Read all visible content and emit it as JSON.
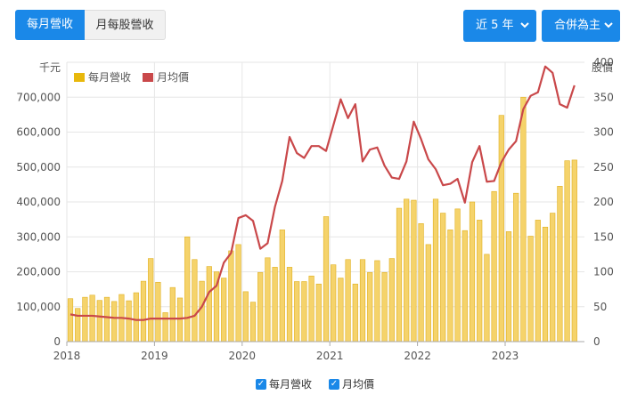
{
  "tabs": {
    "revenue": "每月營收",
    "ratio": "月每股營收"
  },
  "dropdowns": {
    "period": "近 5 年",
    "consolidation": "合併為主"
  },
  "chart_data": {
    "type": "bar+line",
    "y_left_unit": "千元",
    "y_right_unit": "股價",
    "ylim_left": [
      0,
      800000
    ],
    "ylim_right": [
      0,
      400
    ],
    "left_ticks": [
      "0",
      "100,000",
      "200,000",
      "300,000",
      "400,000",
      "500,000",
      "600,000",
      "700,000"
    ],
    "right_ticks": [
      "0",
      "50",
      "100",
      "150",
      "200",
      "250",
      "300",
      "350",
      "400"
    ],
    "x_ticks": [
      "2018",
      "2019",
      "2020",
      "2021",
      "2022",
      "2023"
    ],
    "x_start": "2018-01",
    "grid": true,
    "legend_position": "top-left",
    "colors": {
      "bar": "#f5d36b",
      "bar_border": "#e0b020",
      "line": "#c9484a",
      "grid": "#e6e6e6",
      "accent": "#1a88e8"
    },
    "series": [
      {
        "name": "每月營收",
        "kind": "bar",
        "values": [
          123000,
          95000,
          127000,
          133000,
          118000,
          127000,
          115000,
          135000,
          117000,
          140000,
          173000,
          238000,
          170000,
          83000,
          155000,
          125000,
          300000,
          235000,
          173000,
          215000,
          200000,
          182000,
          260000,
          278000,
          143000,
          113000,
          198000,
          240000,
          213000,
          320000,
          213000,
          172000,
          172000,
          188000,
          165000,
          358000,
          220000,
          182000,
          235000,
          165000,
          235000,
          198000,
          232000,
          198000,
          238000,
          382000,
          408000,
          405000,
          338000,
          278000,
          408000,
          368000,
          320000,
          380000,
          318000,
          400000,
          348000,
          250000,
          430000,
          648000,
          315000,
          425000,
          700000,
          302000,
          348000,
          328000,
          368000,
          445000,
          518000,
          520000
        ]
      },
      {
        "name": "月均價",
        "kind": "line",
        "values": [
          39,
          37,
          37,
          37,
          36,
          35,
          34,
          34,
          33,
          31,
          31,
          33,
          33,
          33,
          33,
          33,
          34,
          37,
          50,
          71,
          80,
          113,
          127,
          177,
          181,
          173,
          133,
          141,
          193,
          230,
          293,
          270,
          263,
          280,
          280,
          273,
          310,
          347,
          320,
          340,
          258,
          275,
          278,
          252,
          235,
          233,
          258,
          315,
          290,
          261,
          247,
          224,
          226,
          233,
          199,
          257,
          280,
          229,
          230,
          257,
          275,
          287,
          333,
          352,
          357,
          394,
          385,
          340,
          335,
          367
        ]
      }
    ]
  }
}
